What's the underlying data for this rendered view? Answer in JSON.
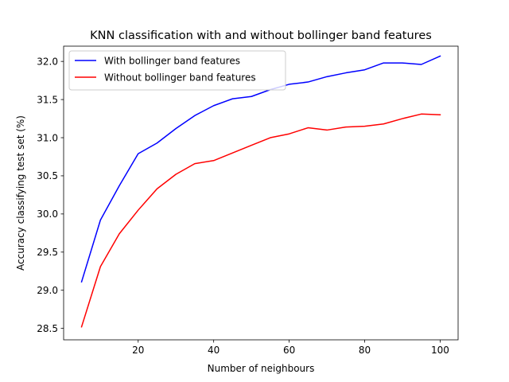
{
  "chart_data": {
    "type": "line",
    "title": "KNN classification with and without bollinger band features",
    "xlabel": "Number of neighbours",
    "ylabel": "Accuracy classifying test set (%)",
    "xlim": [
      0.25,
      104.75
    ],
    "ylim": [
      28.35,
      32.2
    ],
    "xticks": [
      20,
      40,
      60,
      80,
      100
    ],
    "xtick_labels": [
      "20",
      "40",
      "60",
      "80",
      "100"
    ],
    "yticks": [
      28.5,
      29.0,
      29.5,
      30.0,
      30.5,
      31.0,
      31.5,
      32.0
    ],
    "ytick_labels": [
      "28.5",
      "29.0",
      "29.5",
      "30.0",
      "30.5",
      "31.0",
      "31.5",
      "32.0"
    ],
    "grid": false,
    "legend_position": "top-left",
    "x": [
      5,
      10,
      15,
      20,
      25,
      30,
      35,
      40,
      45,
      50,
      55,
      60,
      65,
      70,
      75,
      80,
      85,
      90,
      95,
      100
    ],
    "series": [
      {
        "name": "With bollinger band features",
        "color": "#0000ff",
        "values": [
          29.11,
          29.92,
          30.37,
          30.79,
          30.93,
          31.12,
          31.29,
          31.42,
          31.51,
          31.54,
          31.63,
          31.7,
          31.73,
          31.8,
          31.85,
          31.89,
          31.98,
          31.98,
          31.96,
          32.07
        ]
      },
      {
        "name": "Without bollinger band features",
        "color": "#ff0000",
        "values": [
          28.52,
          29.31,
          29.74,
          30.05,
          30.33,
          30.52,
          30.66,
          30.7,
          30.8,
          30.9,
          31.0,
          31.05,
          31.13,
          31.1,
          31.14,
          31.15,
          31.18,
          31.25,
          31.31,
          31.3
        ]
      }
    ]
  }
}
